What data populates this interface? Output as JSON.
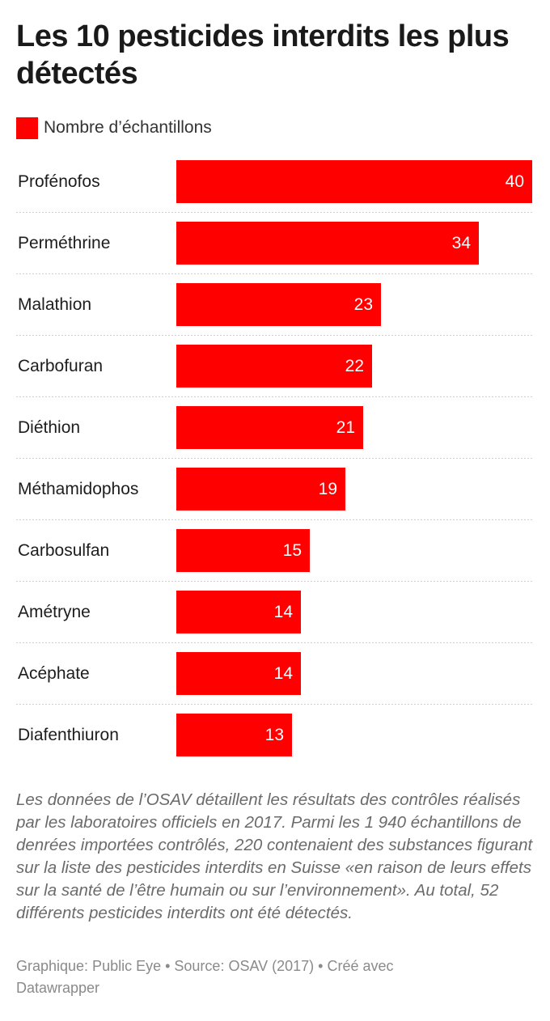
{
  "title": "Les 10 pesticides interdits les plus détectés",
  "legend": {
    "label": "Nombre d’échantillons",
    "color": "#ff0000"
  },
  "chart_data": {
    "type": "bar",
    "orientation": "horizontal",
    "categories": [
      "Proféno fos",
      "Perméthrine",
      "Malathion",
      "Carbofuran",
      "Diéthion",
      "Méthamidophos",
      "Carbosulfan",
      "Amétryne",
      "Acéphate",
      "Diafenthiuron"
    ],
    "series": [
      {
        "name": "Nombre d’échantillons",
        "values": [
          40,
          34,
          23,
          22,
          21,
          19,
          15,
          14,
          14,
          13
        ],
        "color": "#ff0000"
      }
    ],
    "value_labels": "inside-end",
    "xlim": [
      0,
      40
    ]
  },
  "notes": "Les données de l’OSAV détaillent les résultats des contrôles réalisés par les laboratoires officiels en 2017. Parmi les 1 940 échantillons de denrées importées contrôlés, 220 contenaient des substances figurant sur la liste des pesticides interdits en Suisse «en raison de leurs effets sur la santé de l’être humain ou sur l’environnement». Au total, 52 différents pesticides interdits ont été détectés.",
  "footer": "Graphique: Public Eye • Source: OSAV (2017) • Créé avec Datawrapper"
}
